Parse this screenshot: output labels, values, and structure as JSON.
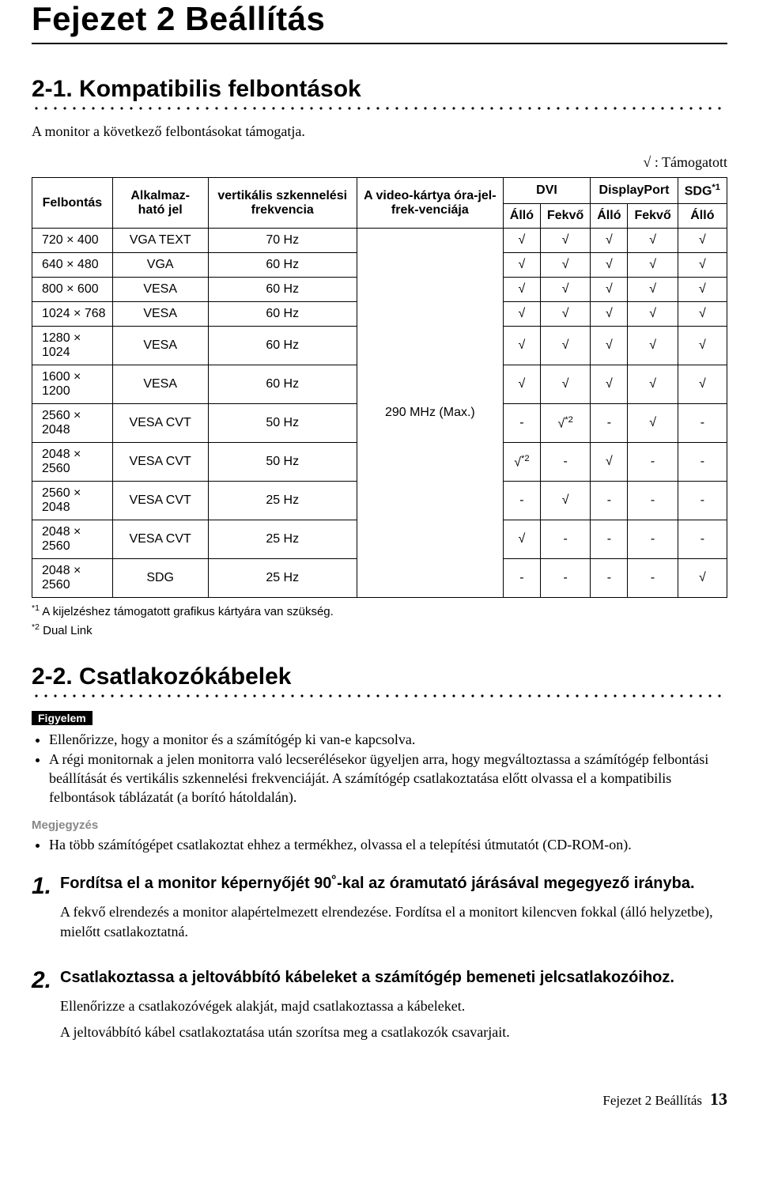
{
  "chapter_title": "Fejezet 2   Beállítás",
  "section1": {
    "heading": "2-1. Kompatibilis felbontások",
    "intro": "A monitor a következő felbontásokat támogatja.",
    "legend": "√ : Támogatott"
  },
  "table": {
    "columns": {
      "resolution": "Felbontás",
      "signal": "Alkalmaz-ható jel",
      "vfreq": "vertikális szkennelési frekvencia",
      "clock": "A video-kártya óra-jel-frek-venciája",
      "dvi": "DVI",
      "dp": "DisplayPort",
      "sdg": "SDG",
      "sdg_sup": "*1",
      "allo": "Álló",
      "fekvo": "Fekvő"
    },
    "clock_value": "290 MHz (Max.)",
    "rows": [
      {
        "res": "720 × 400",
        "sig": "VGA TEXT",
        "vf": "70 Hz",
        "dvi_a": "√",
        "dvi_f": "√",
        "dp_a": "√",
        "dp_f": "√",
        "sdg": "√"
      },
      {
        "res": "640 × 480",
        "sig": "VGA",
        "vf": "60 Hz",
        "dvi_a": "√",
        "dvi_f": "√",
        "dp_a": "√",
        "dp_f": "√",
        "sdg": "√"
      },
      {
        "res": "800 × 600",
        "sig": "VESA",
        "vf": "60 Hz",
        "dvi_a": "√",
        "dvi_f": "√",
        "dp_a": "√",
        "dp_f": "√",
        "sdg": "√"
      },
      {
        "res": "1024 × 768",
        "sig": "VESA",
        "vf": "60 Hz",
        "dvi_a": "√",
        "dvi_f": "√",
        "dp_a": "√",
        "dp_f": "√",
        "sdg": "√"
      },
      {
        "res": "1280 × 1024",
        "sig": "VESA",
        "vf": "60 Hz",
        "dvi_a": "√",
        "dvi_f": "√",
        "dp_a": "√",
        "dp_f": "√",
        "sdg": "√"
      },
      {
        "res": "1600 × 1200",
        "sig": "VESA",
        "vf": "60 Hz",
        "dvi_a": "√",
        "dvi_f": "√",
        "dp_a": "√",
        "dp_f": "√",
        "sdg": "√"
      },
      {
        "res": "2560 × 2048",
        "sig": "VESA CVT",
        "vf": "50 Hz",
        "dvi_a": "-",
        "dvi_f": "√*2",
        "dp_a": "-",
        "dp_f": "√",
        "sdg": "-"
      },
      {
        "res": "2048 × 2560",
        "sig": "VESA CVT",
        "vf": "50 Hz",
        "dvi_a": "√*2",
        "dvi_f": "-",
        "dp_a": "√",
        "dp_f": "-",
        "sdg": "-"
      },
      {
        "res": "2560 × 2048",
        "sig": "VESA CVT",
        "vf": "25 Hz",
        "dvi_a": "-",
        "dvi_f": "√",
        "dp_a": "-",
        "dp_f": "-",
        "sdg": "-"
      },
      {
        "res": "2048 × 2560",
        "sig": "VESA CVT",
        "vf": "25 Hz",
        "dvi_a": "√",
        "dvi_f": "-",
        "dp_a": "-",
        "dp_f": "-",
        "sdg": "-"
      },
      {
        "res": "2048 × 2560",
        "sig": "SDG",
        "vf": "25 Hz",
        "dvi_a": "-",
        "dvi_f": "-",
        "dp_a": "-",
        "dp_f": "-",
        "sdg": "√"
      }
    ]
  },
  "footnotes": {
    "f1": "A kijelzéshez támogatott grafikus kártyára van szükség.",
    "f2": "Dual Link"
  },
  "section2": {
    "heading": "2-2. Csatlakozókábelek",
    "attention_label": "Figyelem",
    "attention_items": [
      "Ellenőrizze, hogy a monitor és a számítógép ki van-e kapcsolva.",
      "A régi monitornak a jelen monitorra való lecserélésekor ügyeljen arra, hogy megváltoztassa a számítógép felbontási beállítását és vertikális szkennelési frekvenciáját. A számítógép csatlakoztatása előtt olvassa el a kompatibilis felbontások táblázatát (a borító hátoldalán)."
    ],
    "note_label": "Megjegyzés",
    "note_items": [
      "Ha több számítógépet csatlakoztat ehhez a termékhez, olvassa el a telepítési útmutatót (CD-ROM-on)."
    ]
  },
  "steps": [
    {
      "num": "1.",
      "title": "Fordítsa el a monitor képernyőjét 90˚-kal az óramutató járásával megegyező irányba.",
      "body": [
        "A fekvő elrendezés a monitor alapértelmezett elrendezése. Fordítsa el a monitort kilencven fokkal (álló helyzetbe), mielőtt csatlakoztatná."
      ]
    },
    {
      "num": "2.",
      "title": "Csatlakoztassa a jeltovábbító kábeleket a számítógép bemeneti jelcsatlakozóihoz.",
      "body": [
        "Ellenőrizze a csatlakozóvégek alakját, majd csatlakoztassa a kábeleket.",
        "A jeltovábbító kábel csatlakoztatása után szorítsa meg a csatlakozók csavarjait."
      ]
    }
  ],
  "footer": {
    "text": "Fejezet 2 Beállítás",
    "page": "13"
  }
}
